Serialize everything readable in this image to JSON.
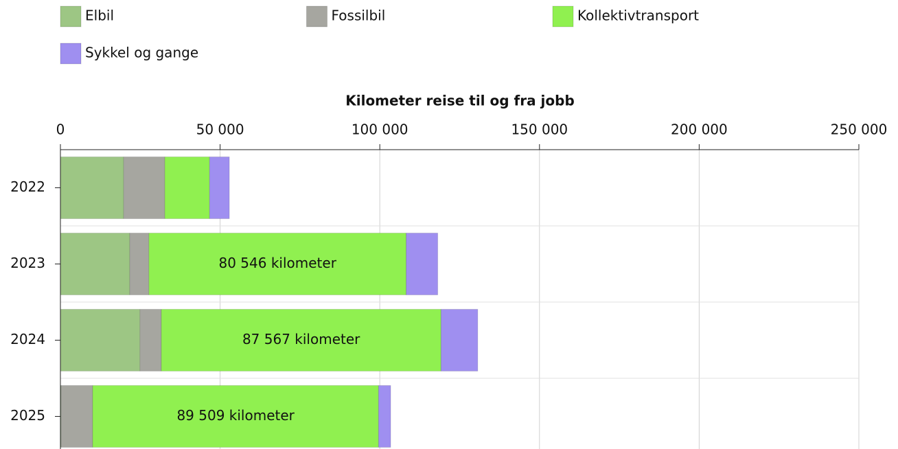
{
  "chart_data": {
    "type": "stacked-bar-horizontal",
    "title": "Kilometer reise til og fra jobb",
    "categories": [
      "2022",
      "2023",
      "2024",
      "2025"
    ],
    "series": [
      {
        "name": "Elbil",
        "color": "#9dc684",
        "values": [
          19800,
          21700,
          24900,
          200
        ]
      },
      {
        "name": "Fossilbil",
        "color": "#a6a6a0",
        "values": [
          12900,
          6000,
          6700,
          9900
        ]
      },
      {
        "name": "Kollektivtransport",
        "color": "#90f050",
        "values": [
          14000,
          80546,
          87567,
          89509
        ],
        "value_labels": [
          null,
          "80 546 kilometer",
          "87 567 kilometer",
          "89 509 kilometer"
        ]
      },
      {
        "name": "Sykkel og gange",
        "color": "#9f8ff0",
        "values": [
          6200,
          9900,
          11500,
          3800
        ]
      }
    ],
    "xlim": [
      0,
      250000
    ],
    "xticks": [
      0,
      {
        "value": 50000,
        "label": "50 000"
      },
      {
        "value": 100000,
        "label": "100 000"
      },
      {
        "value": 150000,
        "label": "150 000"
      },
      {
        "value": 200000,
        "label": "200 000"
      },
      {
        "value": 250000,
        "label": "250 000"
      }
    ],
    "grid": true
  }
}
